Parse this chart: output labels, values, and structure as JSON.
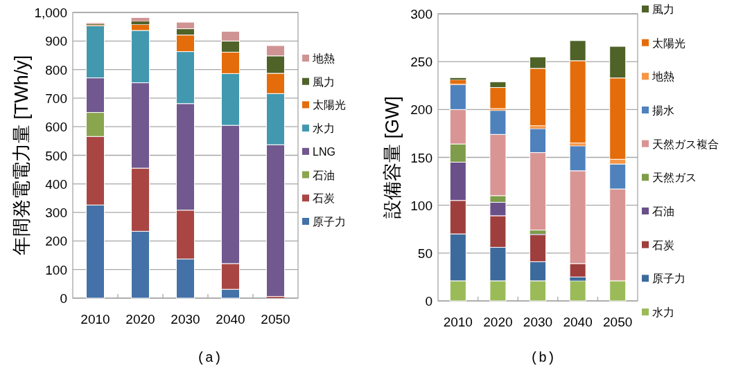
{
  "chart_data": [
    {
      "type": "bar",
      "stacked": true,
      "ylabel": "年間発電電力量 [TWh/y]",
      "categories": [
        "2010",
        "2020",
        "2030",
        "2040",
        "2050"
      ],
      "ylim": [
        0,
        1000
      ],
      "yticks": [
        0,
        100,
        200,
        300,
        400,
        500,
        600,
        700,
        800,
        900,
        {
          "value": 1000,
          "label": "1,000"
        }
      ],
      "grid": "y",
      "legend": "right",
      "annotations": [
        "(a)"
      ],
      "series": [
        {
          "name": "原子力",
          "color": "#4472a8",
          "values": [
            326,
            234,
            137,
            31,
            0
          ]
        },
        {
          "name": "石炭",
          "color": "#a94643",
          "values": [
            240,
            221,
            171,
            90,
            6
          ]
        },
        {
          "name": "石油",
          "color": "#89a54e",
          "values": [
            84,
            0,
            0,
            0,
            0
          ]
        },
        {
          "name": "LNG",
          "color": "#71588f",
          "values": [
            121,
            299,
            373,
            484,
            531
          ]
        },
        {
          "name": "水力",
          "color": "#4198af",
          "values": [
            182,
            183,
            182,
            181,
            179
          ]
        },
        {
          "name": "太陽光",
          "color": "#e46c0a",
          "values": [
            3,
            21,
            58,
            75,
            71
          ]
        },
        {
          "name": "風力",
          "color": "#4f6228",
          "values": [
            3,
            11,
            22,
            39,
            61
          ]
        },
        {
          "name": "地熱",
          "color": "#d09393",
          "values": [
            4,
            12,
            23,
            34,
            36
          ]
        }
      ]
    },
    {
      "type": "bar",
      "stacked": true,
      "ylabel": "設備容量 [GW]",
      "categories": [
        "2010",
        "2020",
        "2030",
        "2040",
        "2050"
      ],
      "ylim": [
        0,
        300
      ],
      "yticks": [
        0,
        50,
        100,
        150,
        200,
        250,
        300
      ],
      "grid": "y",
      "legend": "right",
      "annotations": [
        "(b)"
      ],
      "series": [
        {
          "name": "水力",
          "color": "#9bbb59",
          "values": [
            21,
            21,
            21,
            21,
            21
          ]
        },
        {
          "name": "原子力",
          "color": "#3d6a9c",
          "values": [
            49,
            35,
            20,
            4,
            0
          ]
        },
        {
          "name": "石炭",
          "color": "#9e3f3d",
          "values": [
            35,
            33,
            28,
            14,
            0
          ]
        },
        {
          "name": "石油",
          "color": "#6a5089",
          "values": [
            40,
            14,
            1,
            0,
            0
          ]
        },
        {
          "name": "天然ガス",
          "color": "#7f9c4a",
          "values": [
            19,
            7,
            4,
            0,
            0
          ]
        },
        {
          "name": "天然ガス複合",
          "color": "#d99594",
          "values": [
            36,
            64,
            81,
            97,
            96
          ]
        },
        {
          "name": "揚水",
          "color": "#4f81bd",
          "values": [
            26,
            25,
            25,
            26,
            26
          ]
        },
        {
          "name": "地熱",
          "color": "#f79646",
          "values": [
            1,
            2,
            3,
            3,
            5
          ]
        },
        {
          "name": "太陽光",
          "color": "#e46c0a",
          "values": [
            4,
            22,
            60,
            86,
            85
          ]
        },
        {
          "name": "風力",
          "color": "#4f6228",
          "values": [
            2,
            6,
            12,
            21,
            33
          ]
        }
      ]
    }
  ]
}
